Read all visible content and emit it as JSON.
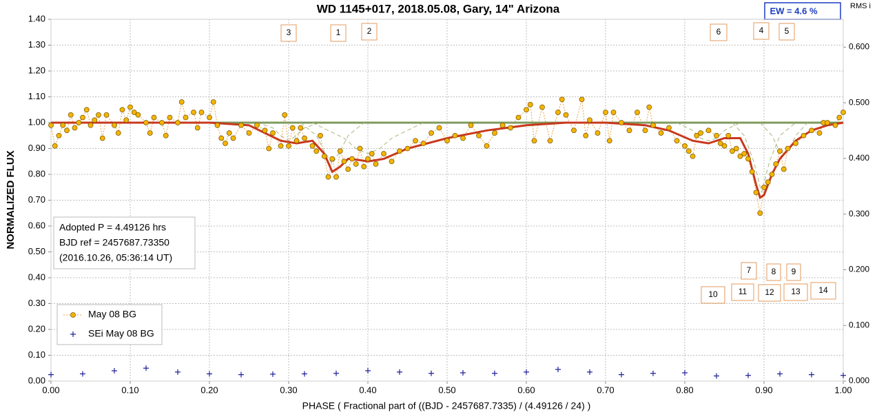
{
  "chart_data": {
    "type": "scatter",
    "title": "WD 1145+017, 2018.05.08, Gary, 14\" Arizona",
    "x_label": "PHASE  ( Fractional part of ((BJD - 2457687.7335)  / (4.49126  / 24) )",
    "y_label": "NORMALIZED  FLUX",
    "y2_label": "RMS i",
    "ew_label": "EW =  4.6 %",
    "info_box": [
      "Adopted P = 4.49126 hrs",
      "BJD ref = 2457687.73350",
      "(2016.10.26, 05:36:14 UT)"
    ],
    "annotations": [
      "3",
      "1",
      "2",
      "6",
      "4",
      "5",
      "7",
      "8",
      "9",
      "10",
      "11",
      "12",
      "13",
      "14"
    ],
    "grid": true,
    "xlim": [
      0,
      1
    ],
    "ylim": [
      0,
      1.4
    ],
    "y2lim": [
      0,
      0.65
    ],
    "xticks": [
      {
        "value": 0,
        "label": "0.00"
      },
      {
        "value": 0.1,
        "label": "0.10"
      },
      {
        "value": 0.2,
        "label": "0.20"
      },
      {
        "value": 0.3,
        "label": "0.30"
      },
      {
        "value": 0.4,
        "label": "0.40"
      },
      {
        "value": 0.5,
        "label": "0.50"
      },
      {
        "value": 0.6,
        "label": "0.60"
      },
      {
        "value": 0.7,
        "label": "0.70"
      },
      {
        "value": 0.8,
        "label": "0.80"
      },
      {
        "value": 0.9,
        "label": "0.90"
      },
      {
        "value": 1,
        "label": "1.00"
      }
    ],
    "yticks": [
      {
        "value": 0,
        "label": "0.00"
      },
      {
        "value": 0.1,
        "label": "0.10"
      },
      {
        "value": 0.2,
        "label": "0.20"
      },
      {
        "value": 0.3,
        "label": "0.30"
      },
      {
        "value": 0.4,
        "label": "0.40"
      },
      {
        "value": 0.5,
        "label": "0.50"
      },
      {
        "value": 0.6,
        "label": "0.60"
      },
      {
        "value": 0.7,
        "label": "0.70"
      },
      {
        "value": 0.8,
        "label": "0.80"
      },
      {
        "value": 0.9,
        "label": "0.90"
      },
      {
        "value": 1,
        "label": "1.00"
      },
      {
        "value": 1.1,
        "label": "1.10"
      },
      {
        "value": 1.2,
        "label": "1.20"
      },
      {
        "value": 1.3,
        "label": "1.30"
      },
      {
        "value": 1.4,
        "label": "1.40"
      }
    ],
    "y2ticks": [
      {
        "value": 0,
        "label": "0.000"
      },
      {
        "value": 0.1,
        "label": "0.100"
      },
      {
        "value": 0.2,
        "label": "0.200"
      },
      {
        "value": 0.3,
        "label": "0.300"
      },
      {
        "value": 0.4,
        "label": "0.400"
      },
      {
        "value": 0.5,
        "label": "0.500"
      },
      {
        "value": 0.6,
        "label": "0.600"
      }
    ],
    "series": [
      {
        "name": "May 08 BG",
        "color": "#f5b400",
        "marker": "circle",
        "line": "dotted",
        "x": [
          0,
          0.005,
          0.01,
          0.015,
          0.02,
          0.025,
          0.03,
          0.035,
          0.04,
          0.045,
          0.05,
          0.055,
          0.06,
          0.065,
          0.07,
          0.08,
          0.085,
          0.09,
          0.095,
          0.1,
          0.105,
          0.11,
          0.12,
          0.125,
          0.13,
          0.14,
          0.145,
          0.15,
          0.16,
          0.165,
          0.17,
          0.18,
          0.185,
          0.19,
          0.2,
          0.205,
          0.21,
          0.215,
          0.22,
          0.225,
          0.23,
          0.24,
          0.25,
          0.26,
          0.27,
          0.275,
          0.28,
          0.29,
          0.295,
          0.3,
          0.305,
          0.31,
          0.315,
          0.32,
          0.33,
          0.335,
          0.34,
          0.345,
          0.35,
          0.355,
          0.36,
          0.365,
          0.37,
          0.375,
          0.38,
          0.385,
          0.39,
          0.395,
          0.4,
          0.405,
          0.41,
          0.42,
          0.43,
          0.44,
          0.45,
          0.46,
          0.47,
          0.48,
          0.49,
          0.5,
          0.51,
          0.52,
          0.53,
          0.54,
          0.55,
          0.56,
          0.57,
          0.58,
          0.59,
          0.6,
          0.605,
          0.61,
          0.62,
          0.63,
          0.64,
          0.645,
          0.65,
          0.66,
          0.67,
          0.675,
          0.68,
          0.69,
          0.7,
          0.705,
          0.71,
          0.72,
          0.73,
          0.74,
          0.75,
          0.755,
          0.76,
          0.77,
          0.78,
          0.79,
          0.8,
          0.805,
          0.81,
          0.815,
          0.82,
          0.83,
          0.84,
          0.845,
          0.85,
          0.855,
          0.86,
          0.865,
          0.87,
          0.875,
          0.88,
          0.885,
          0.89,
          0.895,
          0.9,
          0.905,
          0.91,
          0.915,
          0.92,
          0.925,
          0.93,
          0.94,
          0.95,
          0.96,
          0.97,
          0.975,
          0.98,
          0.99,
          0.995,
          1
        ],
        "values": [
          0.99,
          0.91,
          0.95,
          0.99,
          0.97,
          1.03,
          0.98,
          1,
          1.02,
          1.05,
          0.99,
          1.01,
          1.03,
          0.94,
          1.03,
          0.99,
          0.96,
          1.05,
          1.01,
          1.06,
          1.04,
          1.03,
          1,
          0.96,
          1.02,
          1,
          0.95,
          1.02,
          1,
          1.08,
          1.02,
          1.04,
          0.98,
          1.04,
          1.02,
          1.08,
          0.99,
          0.94,
          0.92,
          0.96,
          0.94,
          0.99,
          0.96,
          0.99,
          0.97,
          0.9,
          0.96,
          0.91,
          1.03,
          0.91,
          0.98,
          0.93,
          0.98,
          0.94,
          0.91,
          0.89,
          0.95,
          0.87,
          0.79,
          0.86,
          0.79,
          0.89,
          0.85,
          0.82,
          0.86,
          0.84,
          0.9,
          0.83,
          0.86,
          0.88,
          0.84,
          0.88,
          0.85,
          0.89,
          0.9,
          0.93,
          0.92,
          0.96,
          0.98,
          0.93,
          0.95,
          0.94,
          0.99,
          0.95,
          0.91,
          0.96,
          0.99,
          0.98,
          1.02,
          1.05,
          1.07,
          0.93,
          1.06,
          0.93,
          1.04,
          1.09,
          1.03,
          0.97,
          1.09,
          0.95,
          1.01,
          0.96,
          1.04,
          0.93,
          1.04,
          1,
          0.97,
          1.04,
          0.97,
          1.06,
          0.99,
          0.96,
          0.98,
          0.93,
          0.91,
          0.89,
          0.87,
          0.95,
          0.96,
          0.97,
          0.95,
          0.92,
          0.91,
          0.95,
          0.89,
          0.9,
          0.87,
          0.88,
          0.86,
          0.81,
          0.73,
          0.65,
          0.75,
          0.77,
          0.8,
          0.84,
          0.89,
          0.82,
          0.9,
          0.92,
          0.95,
          0.97,
          0.96,
          1,
          1,
          0.99,
          1.02,
          1.04
        ]
      },
      {
        "name": "SEi May 08 BG",
        "color": "#1f1f9a",
        "marker": "plus",
        "line": "none",
        "x": [
          0,
          0.04,
          0.08,
          0.12,
          0.16,
          0.2,
          0.24,
          0.28,
          0.32,
          0.36,
          0.4,
          0.44,
          0.48,
          0.52,
          0.56,
          0.6,
          0.64,
          0.68,
          0.72,
          0.76,
          0.8,
          0.84,
          0.88,
          0.92,
          0.96,
          1
        ],
        "values": [
          0.025,
          0.028,
          0.04,
          0.05,
          0.035,
          0.028,
          0.025,
          0.027,
          0.028,
          0.03,
          0.04,
          0.035,
          0.03,
          0.032,
          0.03,
          0.035,
          0.045,
          0.035,
          0.025,
          0.03,
          0.032,
          0.02,
          0.022,
          0.028,
          0.025,
          0.022
        ]
      },
      {
        "color": "#7e9a5c",
        "marker": "none",
        "line": "solid",
        "width": 3,
        "x": [
          0,
          1
        ],
        "values": [
          1,
          1
        ]
      },
      {
        "color": "#a6b57f",
        "marker": "none",
        "line": "dashed",
        "x": [
          0.26,
          0.28,
          0.29,
          0.3,
          0.31,
          0.32,
          0.34
        ],
        "values": [
          1,
          0.98,
          0.95,
          0.93,
          0.95,
          0.98,
          1
        ]
      },
      {
        "color": "#a6b57f",
        "marker": "none",
        "line": "dashed",
        "x": [
          0.315,
          0.335,
          0.345,
          0.355,
          0.365,
          0.375,
          0.395
        ],
        "values": [
          1,
          0.95,
          0.89,
          0.84,
          0.89,
          0.95,
          1
        ]
      },
      {
        "color": "#a6b57f",
        "marker": "none",
        "line": "dashed",
        "x": [
          0.33,
          0.37,
          0.385,
          0.4,
          0.415,
          0.43,
          0.47
        ],
        "values": [
          1,
          0.94,
          0.9,
          0.88,
          0.9,
          0.94,
          1
        ]
      },
      {
        "color": "#a6b57f",
        "marker": "none",
        "line": "dashed",
        "x": [
          0.79,
          0.81,
          0.82,
          0.83,
          0.84,
          0.85,
          0.87
        ],
        "values": [
          1,
          0.97,
          0.94,
          0.93,
          0.94,
          0.97,
          1
        ]
      },
      {
        "color": "#a6b57f",
        "marker": "none",
        "line": "dashed",
        "x": [
          0.86,
          0.875,
          0.887,
          0.897,
          0.907,
          0.92,
          0.94
        ],
        "values": [
          1,
          0.95,
          0.85,
          0.73,
          0.85,
          0.95,
          1
        ]
      },
      {
        "color": "#a6b57f",
        "marker": "none",
        "line": "dashed",
        "x": [
          0.895,
          0.91,
          0.918,
          0.925,
          0.932,
          0.94,
          0.955
        ],
        "values": [
          1,
          0.95,
          0.9,
          0.88,
          0.9,
          0.95,
          1
        ]
      },
      {
        "color": "#c8381c",
        "marker": "none",
        "line": "solid",
        "width": 3,
        "x": [
          0,
          0.2,
          0.25,
          0.27,
          0.29,
          0.31,
          0.33,
          0.345,
          0.355,
          0.365,
          0.375,
          0.39,
          0.4,
          0.42,
          0.45,
          0.5,
          0.55,
          0.6,
          0.65,
          0.7,
          0.75,
          0.78,
          0.81,
          0.83,
          0.85,
          0.87,
          0.88,
          0.89,
          0.895,
          0.9,
          0.91,
          0.92,
          0.94,
          0.96,
          0.98,
          1
        ],
        "values": [
          1,
          1,
          0.99,
          0.96,
          0.93,
          0.92,
          0.93,
          0.88,
          0.81,
          0.83,
          0.86,
          0.855,
          0.85,
          0.86,
          0.9,
          0.94,
          0.97,
          0.99,
          1,
          1,
          0.99,
          0.97,
          0.93,
          0.92,
          0.94,
          0.94,
          0.88,
          0.76,
          0.71,
          0.72,
          0.8,
          0.86,
          0.93,
          0.97,
          0.99,
          1
        ]
      }
    ]
  }
}
